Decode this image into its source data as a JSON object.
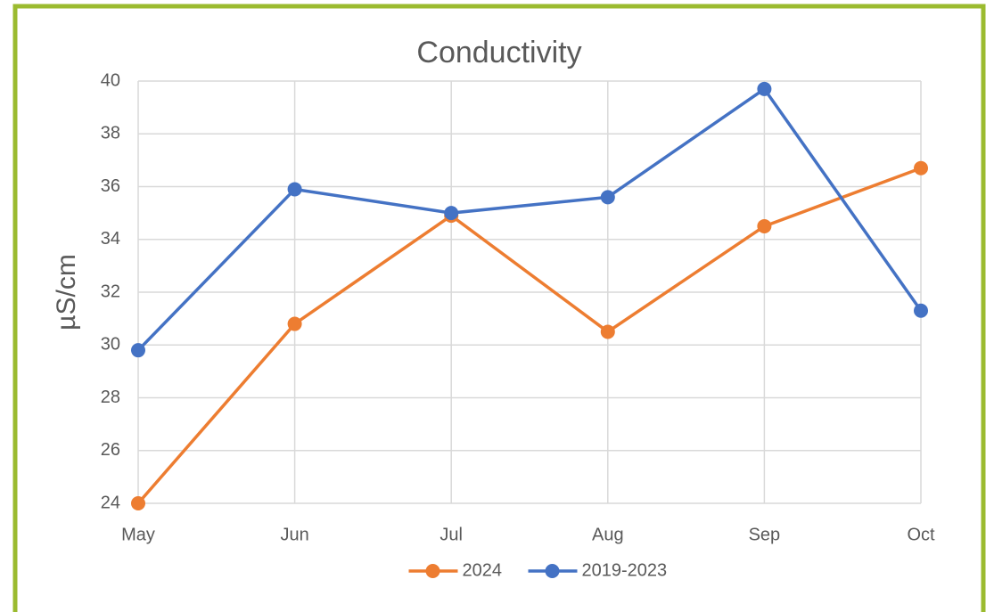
{
  "chart_data": {
    "type": "line",
    "title": "Conductivity",
    "y_label": "µS/cm",
    "categories": [
      "May",
      "Jun",
      "Jul",
      "Aug",
      "Sep",
      "Oct"
    ],
    "series": [
      {
        "name": "2024",
        "color": "#ed7d31",
        "values": [
          24.0,
          30.8,
          34.9,
          30.5,
          34.5,
          36.7
        ]
      },
      {
        "name": "2019-2023",
        "color": "#4472c4",
        "values": [
          29.8,
          35.9,
          35.0,
          35.6,
          39.7,
          31.3
        ]
      }
    ],
    "ylim": [
      24,
      40
    ],
    "yticks": [
      24,
      26,
      28,
      30,
      32,
      34,
      36,
      38,
      40
    ],
    "grid": true,
    "legend": "bottom"
  }
}
